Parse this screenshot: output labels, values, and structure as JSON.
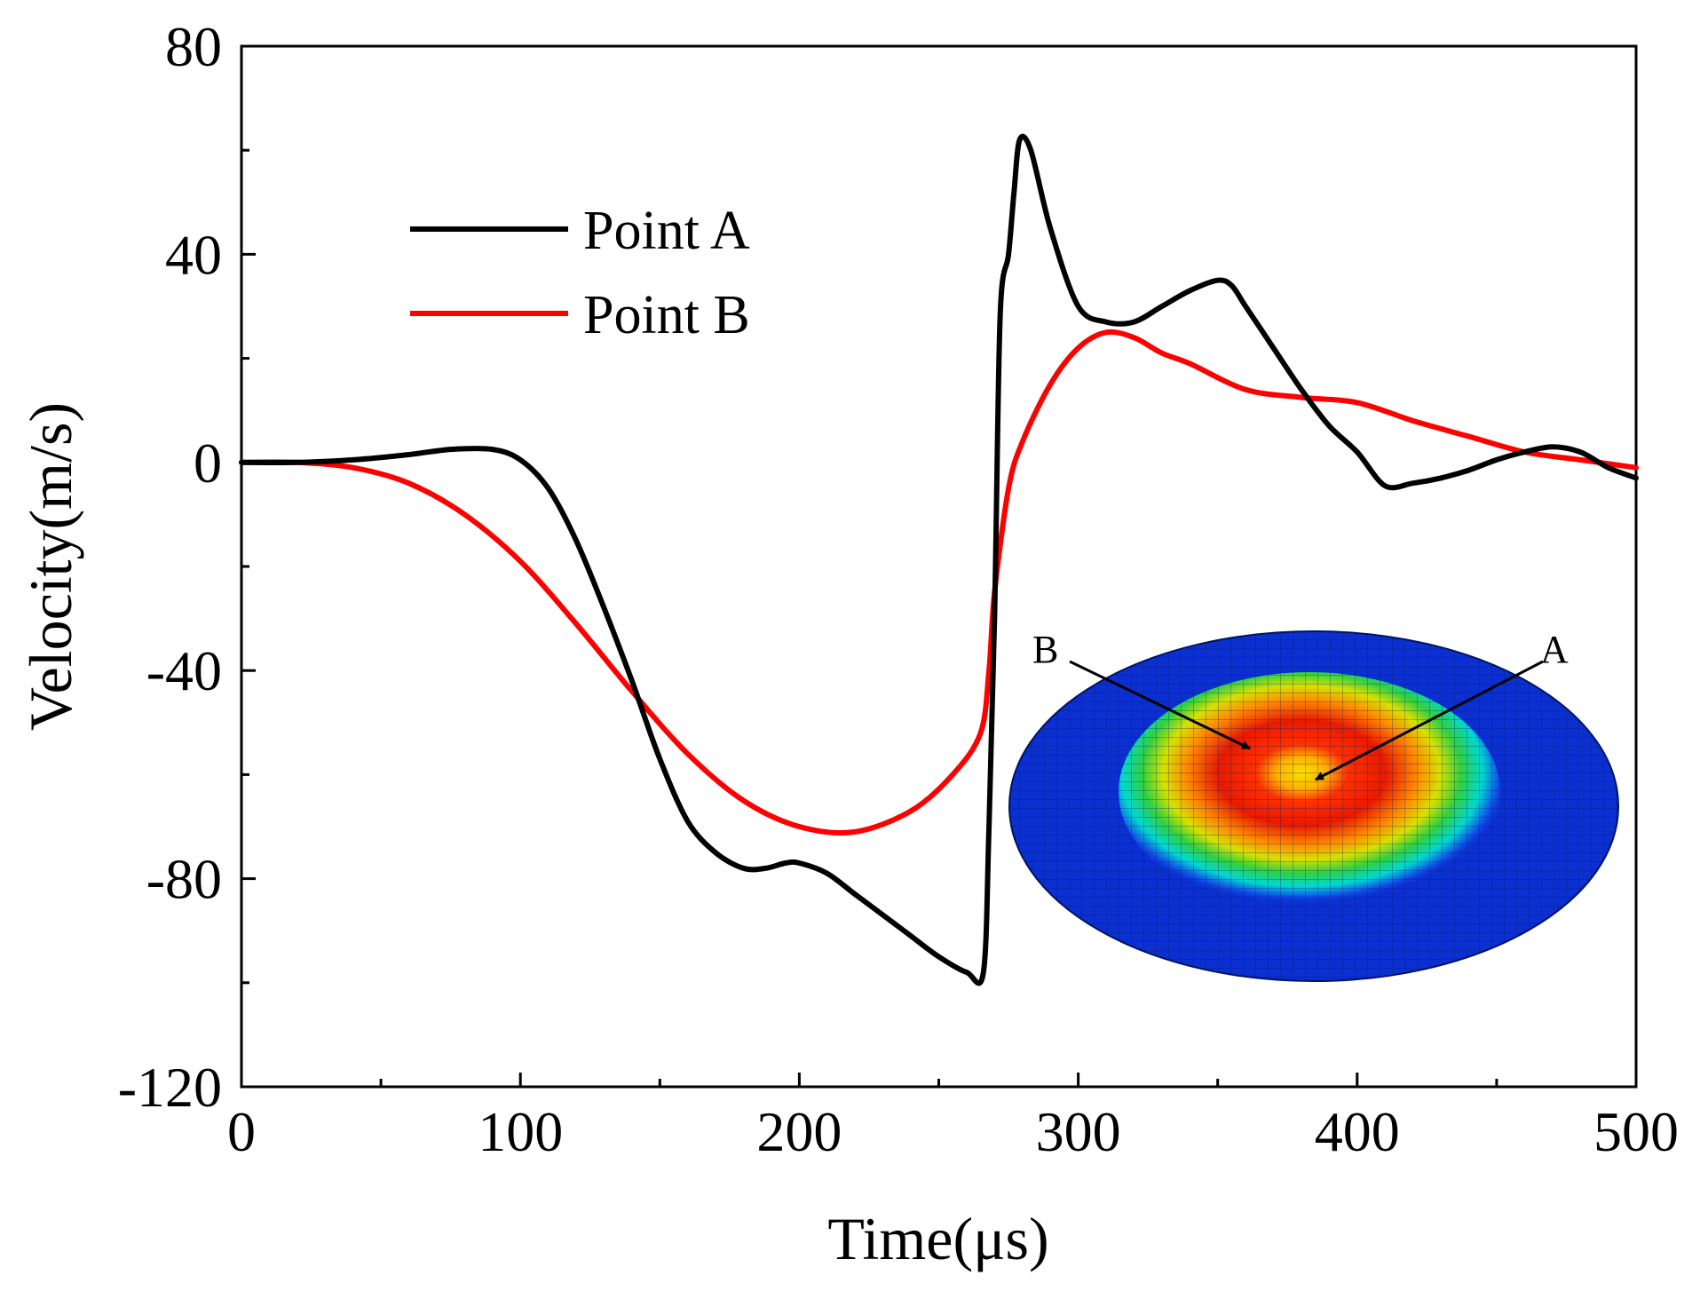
{
  "chart_data": {
    "type": "line",
    "title": "",
    "xlabel": "Time(μs)",
    "ylabel": "Velocity(m/s)",
    "xlim": [
      0,
      500
    ],
    "ylim": [
      -120,
      80
    ],
    "xticks": [
      0,
      100,
      200,
      300,
      400,
      500
    ],
    "yticks": [
      80,
      40,
      0,
      -40,
      -80,
      -120
    ],
    "legend_position": "top-left",
    "grid": false,
    "series": [
      {
        "name": "Point A",
        "color": "#000000",
        "x": [
          0,
          20,
          40,
          60,
          75,
          90,
          100,
          110,
          120,
          130,
          140,
          150,
          160,
          170,
          180,
          188,
          195,
          200,
          210,
          220,
          230,
          240,
          250,
          260,
          266,
          268,
          270,
          272,
          275,
          277,
          279,
          283,
          290,
          300,
          310,
          320,
          330,
          340,
          350,
          355,
          360,
          370,
          380,
          390,
          400,
          410,
          420,
          430,
          440,
          450,
          460,
          470,
          480,
          490,
          500
        ],
        "y": [
          0,
          0,
          0.5,
          1.5,
          2.5,
          2.5,
          0.5,
          -5,
          -15,
          -28,
          -42,
          -57,
          -69,
          -75,
          -78,
          -78,
          -77,
          -77,
          -79,
          -83,
          -87,
          -91,
          -95,
          -98,
          -98,
          -70,
          -30,
          28,
          40,
          52,
          62,
          60,
          45,
          30,
          27,
          27,
          30,
          33,
          35,
          34,
          30,
          22,
          14,
          7,
          2,
          -4.5,
          -4,
          -3,
          -1.5,
          0.5,
          2,
          3,
          2,
          -1,
          -3
        ]
      },
      {
        "name": "Point B",
        "color": "#ff0000",
        "x": [
          0,
          20,
          40,
          60,
          80,
          100,
          120,
          140,
          160,
          180,
          200,
          220,
          240,
          255,
          265,
          268,
          270,
          275,
          280,
          290,
          300,
          310,
          320,
          330,
          340,
          360,
          380,
          400,
          420,
          440,
          460,
          480,
          500
        ],
        "y": [
          0,
          0,
          -1,
          -4,
          -10,
          -19,
          -31,
          -44,
          -56,
          -65,
          -70,
          -71,
          -67,
          -60,
          -52,
          -40,
          -25,
          -5,
          4,
          15,
          22,
          25,
          24,
          21,
          19,
          14,
          12.5,
          11.5,
          8,
          5,
          2,
          0.5,
          -1
        ]
      }
    ],
    "inset": {
      "labels": [
        "A",
        "B"
      ]
    }
  }
}
